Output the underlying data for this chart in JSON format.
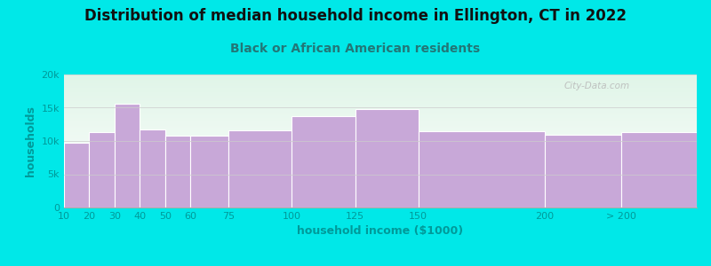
{
  "title": "Distribution of median household income in Ellington, CT in 2022",
  "subtitle": "Black or African American residents",
  "xlabel": "household income ($1000)",
  "ylabel": "households",
  "bar_labels": [
    "10",
    "20",
    "30",
    "40",
    "50",
    "60",
    "75",
    "100",
    "125",
    "150",
    "200",
    "> 200"
  ],
  "bar_values": [
    9800,
    11400,
    15600,
    11800,
    10800,
    10800,
    11600,
    13700,
    14800,
    11500,
    11000,
    11400
  ],
  "bar_color": "#c8a8d8",
  "background_color": "#00e8e8",
  "plot_bg_top": "#e0f5e8",
  "plot_bg_bottom": "#ffffff",
  "title_color": "#111111",
  "subtitle_color": "#227777",
  "axis_label_color": "#009999",
  "tick_label_color": "#009999",
  "ylim": [
    0,
    20000
  ],
  "yticks": [
    0,
    5000,
    10000,
    15000,
    20000
  ],
  "ytick_labels": [
    "0",
    "5k",
    "10k",
    "15k",
    "20k"
  ],
  "title_fontsize": 12,
  "subtitle_fontsize": 10,
  "label_fontsize": 9,
  "watermark": "City-Data.com",
  "x_positions": [
    10,
    20,
    30,
    40,
    50,
    60,
    75,
    100,
    125,
    150,
    200,
    230
  ],
  "bar_widths": [
    10,
    10,
    10,
    10,
    10,
    15,
    25,
    25,
    25,
    50,
    30,
    30
  ],
  "xlim": [
    10,
    260
  ]
}
